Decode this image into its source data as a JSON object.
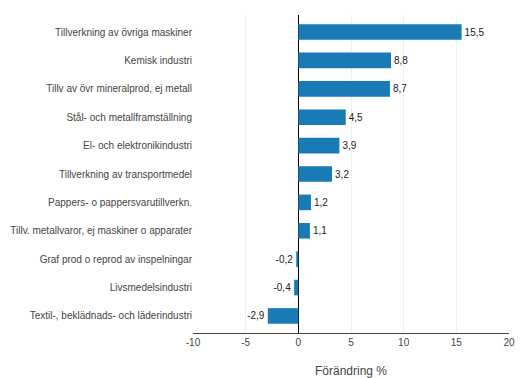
{
  "chart_data": {
    "type": "bar",
    "orientation": "horizontal",
    "categories": [
      "Textil-, beklädnads- och läderindustri",
      "Livsmedelsindustri",
      "Graf prod o reprod av inspelningar",
      "Tillv. metallvaror, ej maskiner o apparater",
      "Pappers- o pappersvarutillverkn.",
      "Tillverkning av transportmedel",
      "El- och elektronikindustri",
      "Stål- och metallframställning",
      "Tillv av övr mineralprod, ej metall",
      "Kemisk industri",
      "Tillverkning av övriga maskiner"
    ],
    "values": [
      -2.9,
      -0.4,
      -0.2,
      1.1,
      1.2,
      3.2,
      3.9,
      4.5,
      8.7,
      8.8,
      15.5
    ],
    "value_labels": [
      "-2,9",
      "-0,4",
      "-0,2",
      "1,1",
      "1,2",
      "3,2",
      "3,9",
      "4,5",
      "8,7",
      "8,8",
      "15,5"
    ],
    "data_labels": true,
    "color": "#1a7ab5",
    "xlabel": "Förändring %",
    "xlim": [
      -10,
      20
    ],
    "xticks": [
      -10,
      -5,
      0,
      5,
      10,
      15,
      20
    ],
    "grid": true
  }
}
